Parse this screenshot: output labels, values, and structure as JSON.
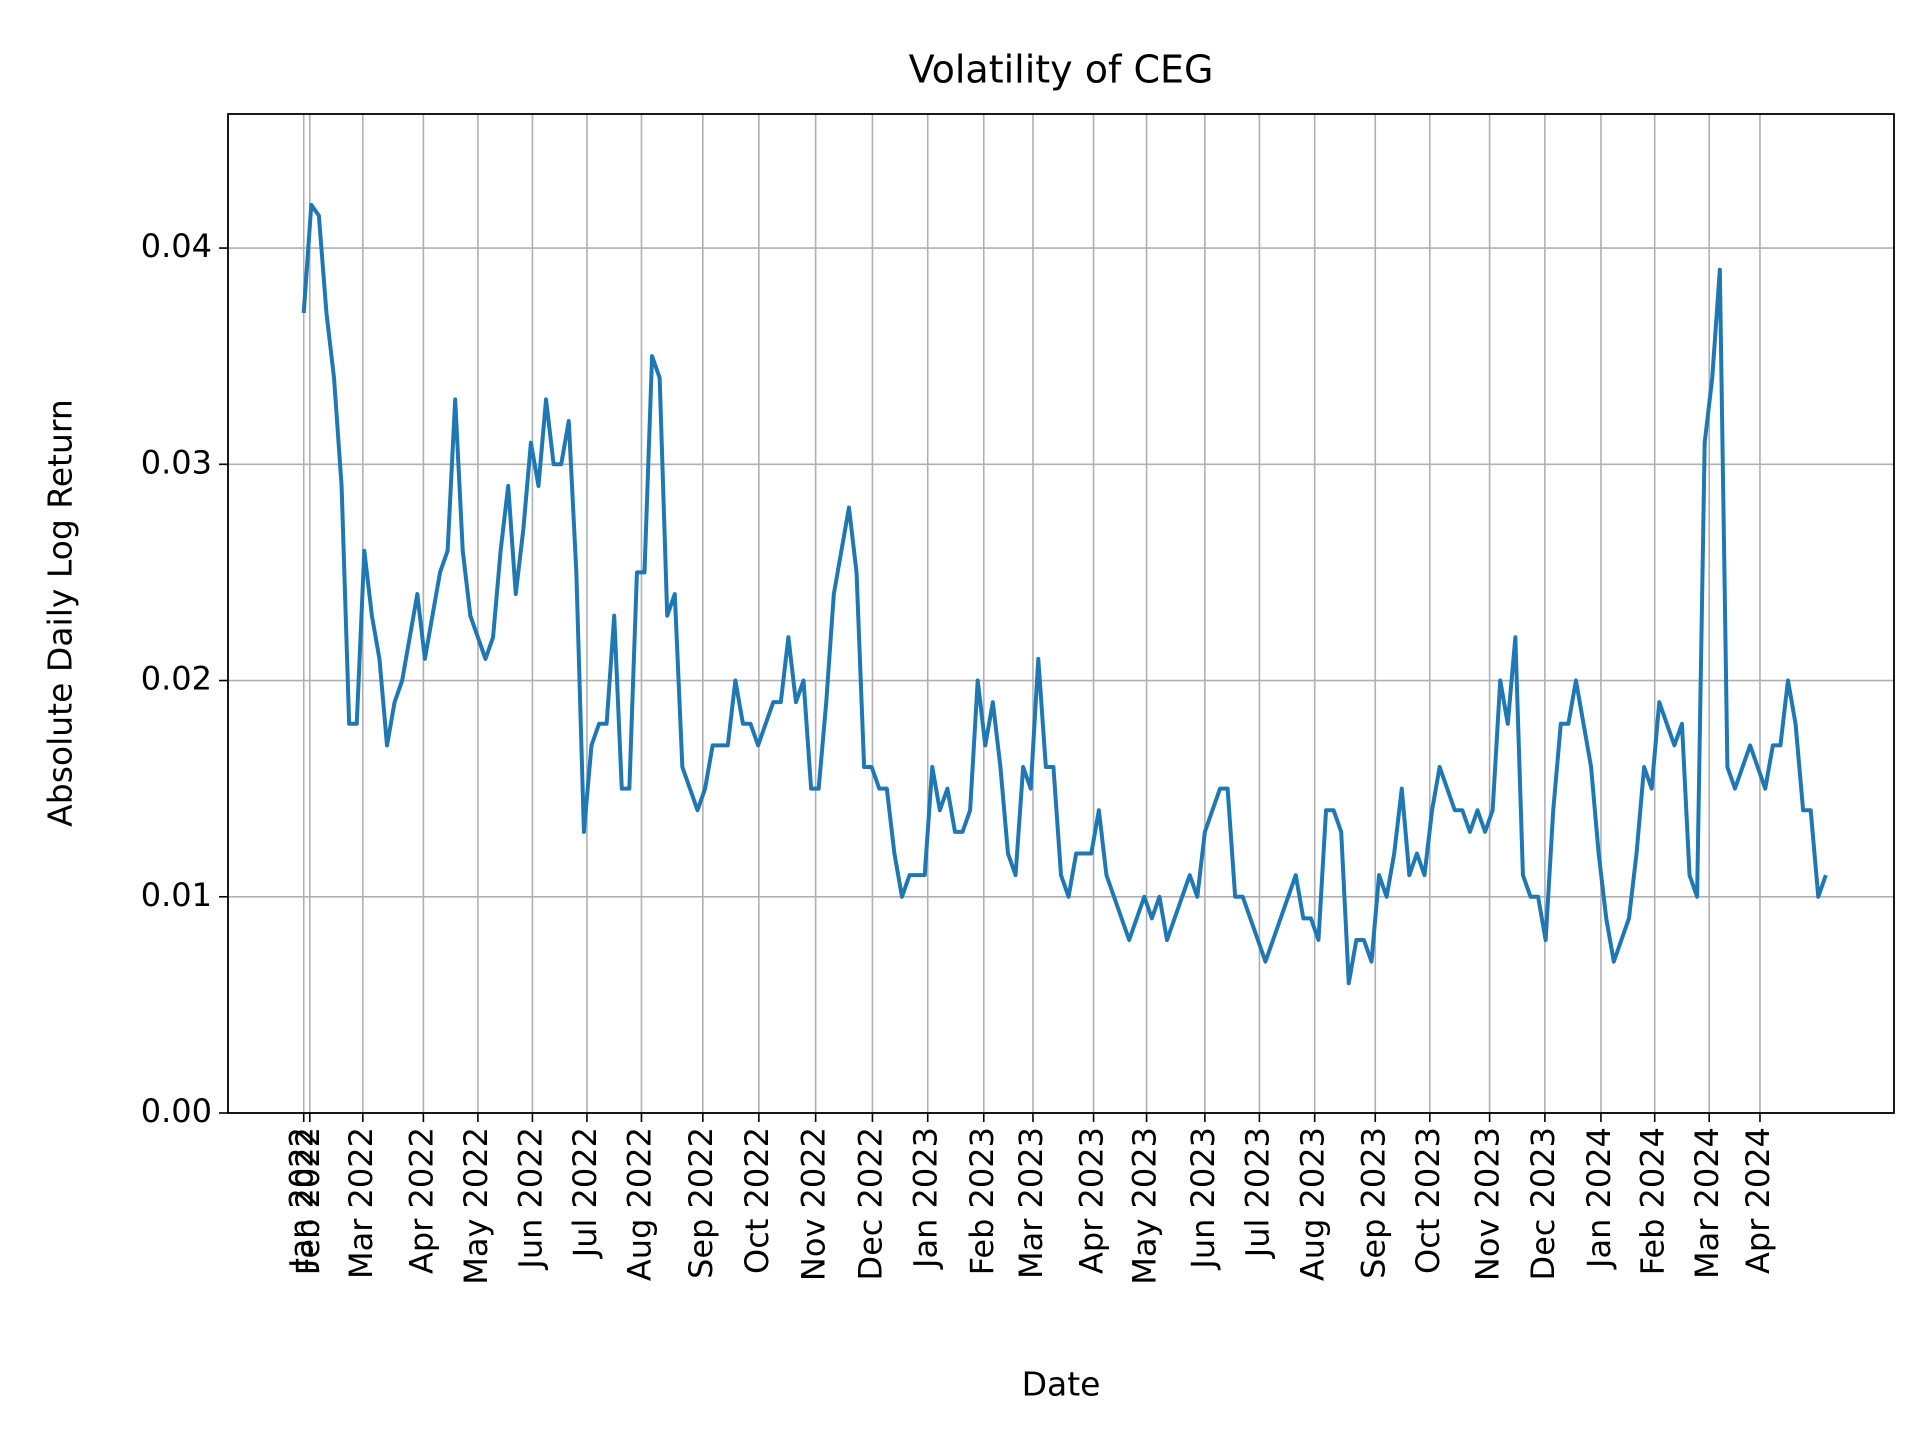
{
  "chart_data": {
    "type": "line",
    "title": "Volatility of CEG",
    "x_label": "Date",
    "y_label": "Absolute Daily Log Return",
    "grid": true,
    "xlim": [
      -10,
      210
    ],
    "xticks": [
      {
        "value": 0,
        "label": "Jan 2022"
      },
      {
        "value": 0.8,
        "label": "Feb 2022"
      },
      {
        "value": 7.8,
        "label": "Mar 2022"
      },
      {
        "value": 15.8,
        "label": "Apr 2022"
      },
      {
        "value": 23.0,
        "label": "May 2022"
      },
      {
        "value": 30.2,
        "label": "Jun 2022"
      },
      {
        "value": 37.4,
        "label": "Jul 2022"
      },
      {
        "value": 44.6,
        "label": "Aug 2022"
      },
      {
        "value": 52.7,
        "label": "Sep 2022"
      },
      {
        "value": 60.1,
        "label": "Oct 2022"
      },
      {
        "value": 67.6,
        "label": "Nov 2022"
      },
      {
        "value": 75.1,
        "label": "Dec 2022"
      },
      {
        "value": 82.4,
        "label": "Jan 2023"
      },
      {
        "value": 89.8,
        "label": "Feb 2023"
      },
      {
        "value": 96.3,
        "label": "Mar 2023"
      },
      {
        "value": 104.3,
        "label": "Apr 2023"
      },
      {
        "value": 111.3,
        "label": "May 2023"
      },
      {
        "value": 119.0,
        "label": "Jun 2023"
      },
      {
        "value": 126.2,
        "label": "Jul 2023"
      },
      {
        "value": 133.5,
        "label": "Aug 2023"
      },
      {
        "value": 141.5,
        "label": "Sep 2023"
      },
      {
        "value": 148.7,
        "label": "Oct 2023"
      },
      {
        "value": 156.6,
        "label": "Nov 2023"
      },
      {
        "value": 163.9,
        "label": "Dec 2023"
      },
      {
        "value": 171.3,
        "label": "Jan 2024"
      },
      {
        "value": 178.4,
        "label": "Feb 2024"
      },
      {
        "value": 185.6,
        "label": "Mar 2024"
      },
      {
        "value": 192.3,
        "label": "Apr 2024"
      }
    ],
    "ylim": [
      0,
      0.0462
    ],
    "yticks": [
      {
        "value": 0,
        "label": "0.00"
      },
      {
        "value": 0.01,
        "label": "0.01"
      },
      {
        "value": 0.02,
        "label": "0.02"
      },
      {
        "value": 0.03,
        "label": "0.03"
      },
      {
        "value": 0.04,
        "label": "0.04"
      }
    ],
    "color": "#1f77b4",
    "values": [
      0.037,
      0.042,
      0.0415,
      0.037,
      0.034,
      0.029,
      0.018,
      0.018,
      0.026,
      0.023,
      0.021,
      0.017,
      0.019,
      0.02,
      0.022,
      0.024,
      0.021,
      0.023,
      0.025,
      0.026,
      0.033,
      0.026,
      0.023,
      0.022,
      0.021,
      0.022,
      0.026,
      0.029,
      0.024,
      0.027,
      0.031,
      0.029,
      0.033,
      0.03,
      0.03,
      0.032,
      0.025,
      0.013,
      0.017,
      0.018,
      0.018,
      0.023,
      0.015,
      0.015,
      0.025,
      0.025,
      0.035,
      0.034,
      0.023,
      0.024,
      0.016,
      0.015,
      0.014,
      0.015,
      0.017,
      0.017,
      0.017,
      0.02,
      0.018,
      0.018,
      0.017,
      0.018,
      0.019,
      0.019,
      0.022,
      0.019,
      0.02,
      0.015,
      0.015,
      0.019,
      0.024,
      0.026,
      0.028,
      0.025,
      0.016,
      0.016,
      0.015,
      0.015,
      0.012,
      0.01,
      0.011,
      0.011,
      0.011,
      0.016,
      0.014,
      0.015,
      0.013,
      0.013,
      0.014,
      0.02,
      0.017,
      0.019,
      0.016,
      0.012,
      0.011,
      0.016,
      0.015,
      0.021,
      0.016,
      0.016,
      0.011,
      0.01,
      0.012,
      0.012,
      0.012,
      0.014,
      0.011,
      0.01,
      0.009,
      0.008,
      0.009,
      0.01,
      0.009,
      0.01,
      0.008,
      0.009,
      0.01,
      0.011,
      0.01,
      0.013,
      0.014,
      0.015,
      0.015,
      0.01,
      0.01,
      0.009,
      0.008,
      0.007,
      0.008,
      0.009,
      0.01,
      0.011,
      0.009,
      0.009,
      0.008,
      0.014,
      0.014,
      0.013,
      0.006,
      0.008,
      0.008,
      0.007,
      0.011,
      0.01,
      0.012,
      0.015,
      0.011,
      0.012,
      0.011,
      0.014,
      0.016,
      0.015,
      0.014,
      0.014,
      0.013,
      0.014,
      0.013,
      0.014,
      0.02,
      0.018,
      0.022,
      0.011,
      0.01,
      0.01,
      0.008,
      0.014,
      0.018,
      0.018,
      0.02,
      0.018,
      0.016,
      0.012,
      0.009,
      0.007,
      0.008,
      0.009,
      0.012,
      0.016,
      0.015,
      0.019,
      0.018,
      0.017,
      0.018,
      0.011,
      0.01,
      0.031,
      0.034,
      0.039,
      0.016,
      0.015,
      0.016,
      0.017,
      0.016,
      0.015,
      0.017,
      0.017,
      0.02,
      0.018,
      0.014,
      0.014,
      0.01,
      0.011
    ]
  }
}
